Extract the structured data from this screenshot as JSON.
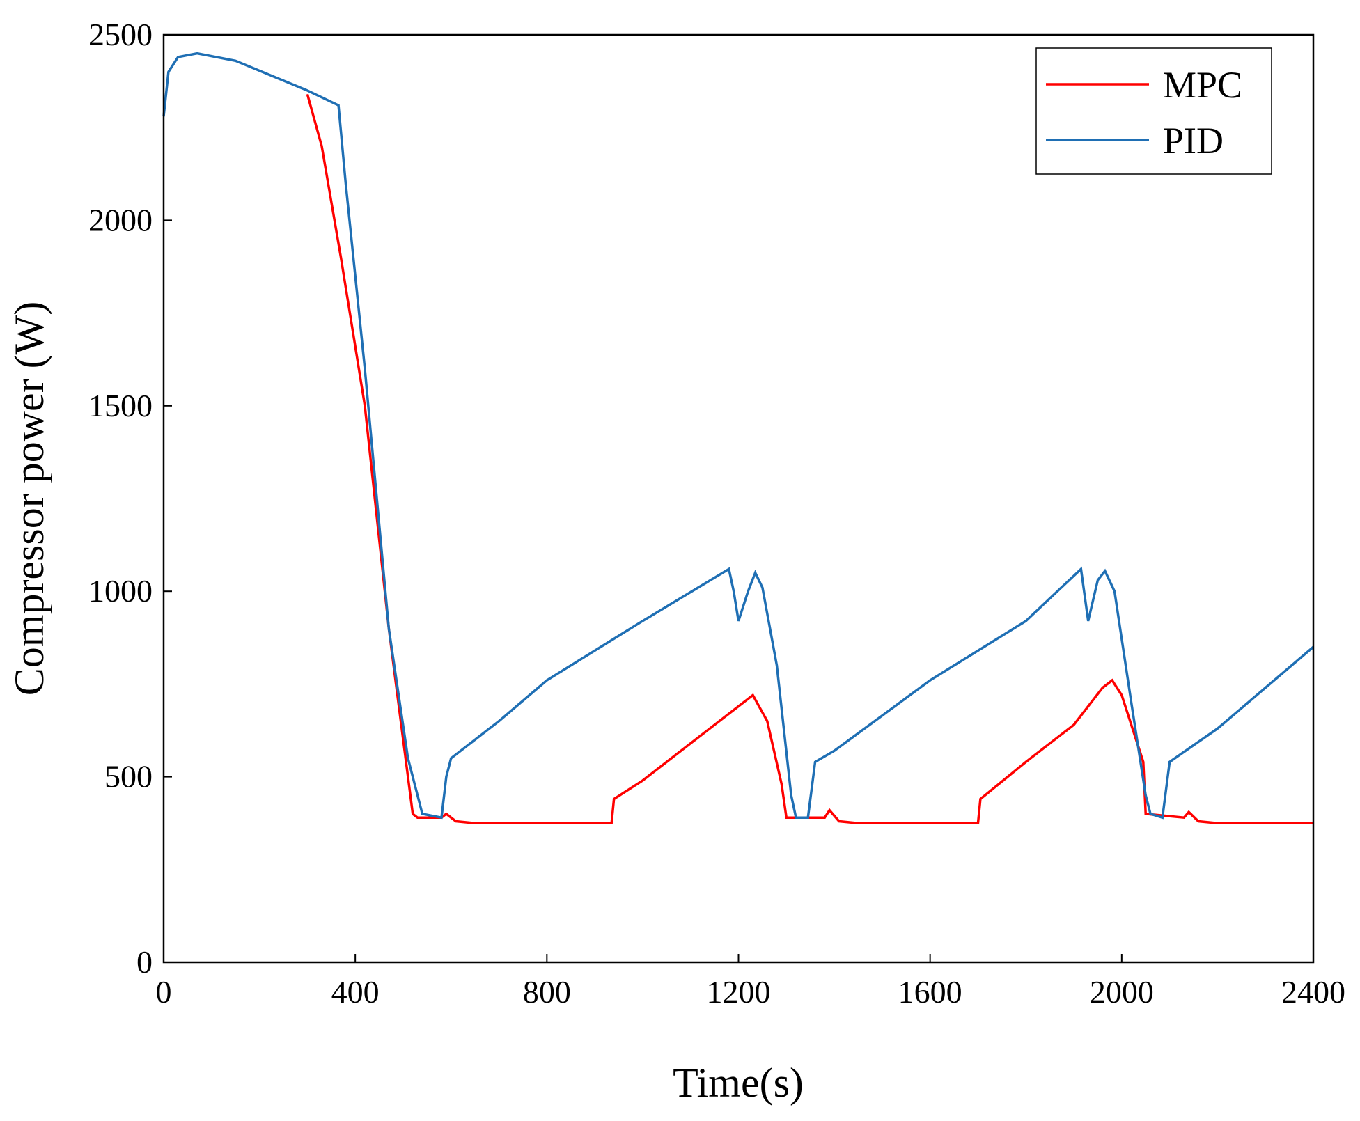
{
  "chart_data": {
    "type": "line",
    "x_label": "Time(s)",
    "y_label": "Compressor power (W)",
    "xlim": [
      0,
      2400
    ],
    "xticks": [
      0,
      400,
      800,
      1200,
      1600,
      2000,
      2400
    ],
    "ylim": [
      0,
      2500
    ],
    "yticks": [
      0,
      500,
      1000,
      1500,
      2000,
      2500
    ],
    "legend": "upper right",
    "series": [
      {
        "name": "MPC",
        "color": "#ff0000",
        "x": [
          300,
          330,
          370,
          420,
          470,
          500,
          520,
          530,
          580,
          590,
          610,
          650,
          935,
          940,
          1000,
          1100,
          1200,
          1230,
          1260,
          1290,
          1300,
          1380,
          1390,
          1410,
          1450,
          1700,
          1705,
          1800,
          1900,
          1960,
          1980,
          2000,
          2030,
          2045,
          2050,
          2130,
          2140,
          2160,
          2200,
          2400
        ],
        "values": [
          2340,
          2200,
          1900,
          1500,
          900,
          600,
          400,
          390,
          390,
          400,
          380,
          375,
          375,
          440,
          490,
          590,
          690,
          720,
          650,
          480,
          390,
          390,
          410,
          380,
          375,
          375,
          440,
          540,
          640,
          740,
          760,
          720,
          600,
          540,
          400,
          390,
          405,
          380,
          375,
          375
        ]
      },
      {
        "name": "PID",
        "color": "#1f6fb4",
        "x": [
          0,
          10,
          30,
          70,
          150,
          300,
          365,
          380,
          420,
          470,
          510,
          540,
          580,
          590,
          600,
          700,
          800,
          1000,
          1180,
          1190,
          1200,
          1220,
          1235,
          1250,
          1280,
          1310,
          1320,
          1345,
          1360,
          1400,
          1600,
          1800,
          1915,
          1930,
          1950,
          1965,
          1985,
          2020,
          2050,
          2060,
          2085,
          2100,
          2200,
          2400
        ],
        "values": [
          2280,
          2400,
          2440,
          2450,
          2430,
          2350,
          2310,
          2100,
          1600,
          900,
          550,
          400,
          390,
          500,
          550,
          650,
          760,
          920,
          1060,
          1000,
          920,
          1000,
          1050,
          1010,
          800,
          450,
          390,
          390,
          540,
          570,
          760,
          920,
          1060,
          920,
          1030,
          1055,
          1000,
          700,
          450,
          400,
          390,
          540,
          630,
          850
        ]
      }
    ]
  }
}
